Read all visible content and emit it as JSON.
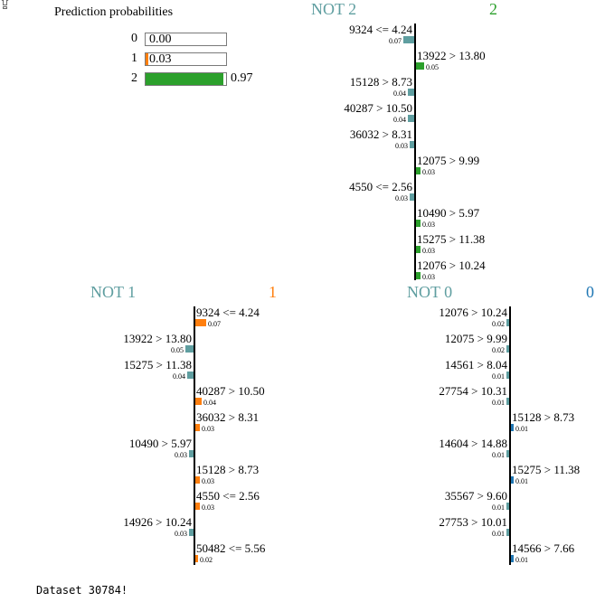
{
  "corner_icon": "share-icon",
  "prediction": {
    "title": "Prediction probabilities",
    "rows": [
      {
        "label": "0",
        "value": "0.00",
        "fraction": 0.0,
        "color": "#1f77b4"
      },
      {
        "label": "1",
        "value": "0.03",
        "fraction": 0.03,
        "color": "#ff7f0e"
      },
      {
        "label": "2",
        "value": "0.97",
        "fraction": 0.97,
        "color": "#2ca02c"
      }
    ]
  },
  "panels": [
    {
      "key": "class2",
      "not_label": "NOT 2",
      "class_label": "2",
      "not_color": "#5f9ea0",
      "class_color": "#2ca02c",
      "features": [
        {
          "label": "9324 <= 4.24",
          "weight": "0.07",
          "side": "left"
        },
        {
          "label": "13922 > 13.80",
          "weight": "0.05",
          "side": "right"
        },
        {
          "label": "15128 > 8.73",
          "weight": "0.04",
          "side": "left"
        },
        {
          "label": "40287 > 10.50",
          "weight": "0.04",
          "side": "left"
        },
        {
          "label": "36032 > 8.31",
          "weight": "0.03",
          "side": "left"
        },
        {
          "label": "12075 > 9.99",
          "weight": "0.03",
          "side": "right"
        },
        {
          "label": "4550 <= 2.56",
          "weight": "0.03",
          "side": "left"
        },
        {
          "label": "10490 > 5.97",
          "weight": "0.03",
          "side": "right"
        },
        {
          "label": "15275 > 11.38",
          "weight": "0.03",
          "side": "right"
        },
        {
          "label": "12076 > 10.24",
          "weight": "0.03",
          "side": "right"
        }
      ]
    },
    {
      "key": "class1",
      "not_label": "NOT 1",
      "class_label": "1",
      "not_color": "#5f9ea0",
      "class_color": "#ff7f0e",
      "features": [
        {
          "label": "9324 <= 4.24",
          "weight": "0.07",
          "side": "right"
        },
        {
          "label": "13922 > 13.80",
          "weight": "0.05",
          "side": "left"
        },
        {
          "label": "15275 > 11.38",
          "weight": "0.04",
          "side": "left"
        },
        {
          "label": "40287 > 10.50",
          "weight": "0.04",
          "side": "right"
        },
        {
          "label": "36032 > 8.31",
          "weight": "0.03",
          "side": "right"
        },
        {
          "label": "10490 > 5.97",
          "weight": "0.03",
          "side": "left"
        },
        {
          "label": "15128 > 8.73",
          "weight": "0.03",
          "side": "right"
        },
        {
          "label": "4550 <= 2.56",
          "weight": "0.03",
          "side": "right"
        },
        {
          "label": "14926 > 10.24",
          "weight": "0.03",
          "side": "left"
        },
        {
          "label": "50482 <= 5.56",
          "weight": "0.02",
          "side": "right"
        }
      ]
    },
    {
      "key": "class0",
      "not_label": "NOT 0",
      "class_label": "0",
      "not_color": "#5f9ea0",
      "class_color": "#1f77b4",
      "features": [
        {
          "label": "12076 > 10.24",
          "weight": "0.02",
          "side": "left"
        },
        {
          "label": "12075 > 9.99",
          "weight": "0.02",
          "side": "left"
        },
        {
          "label": "14561 > 8.04",
          "weight": "0.01",
          "side": "left"
        },
        {
          "label": "27754 > 10.31",
          "weight": "0.01",
          "side": "left"
        },
        {
          "label": "15128 > 8.73",
          "weight": "0.01",
          "side": "right"
        },
        {
          "label": "14604 > 14.88",
          "weight": "0.01",
          "side": "left"
        },
        {
          "label": "15275 > 11.38",
          "weight": "0.01",
          "side": "right"
        },
        {
          "label": "35567 > 9.60",
          "weight": "0.01",
          "side": "left"
        },
        {
          "label": "27753 > 10.01",
          "weight": "0.01",
          "side": "left"
        },
        {
          "label": "14566 > 7.66",
          "weight": "0.01",
          "side": "right"
        }
      ]
    }
  ],
  "footer": "Dataset 30784!"
}
